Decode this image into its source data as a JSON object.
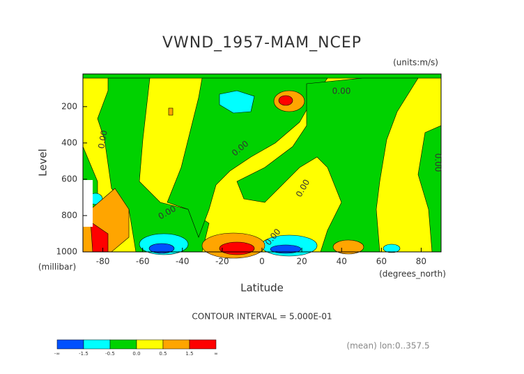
{
  "chart_data": {
    "type": "contour",
    "title": "VWND_1957-MAM_NCEP",
    "units": "(units:m/s)",
    "x_label": "Latitude",
    "x_units": "(degrees_north)",
    "y_label": "Level",
    "y_units": "(millibar)",
    "xlim": [
      -90,
      90
    ],
    "xticks": [
      -80,
      -60,
      -40,
      -20,
      0,
      20,
      40,
      60,
      80
    ],
    "ylim": [
      1000,
      20
    ],
    "yticks": [
      200,
      400,
      600,
      800,
      1000
    ],
    "contour_labels": [
      "0.00",
      "0.00",
      "0.00",
      "0.00",
      "0.00",
      "0.00",
      "0.00"
    ],
    "contour_interval": "CONTOUR INTERVAL = 5.000E-01",
    "colorbar": {
      "colors": [
        "#0050ff",
        "#00ffff",
        "#00d200",
        "#ffff00",
        "#ffa500",
        "#ff0000"
      ],
      "labels": [
        "-∞",
        "-1.5",
        "-0.5",
        "0.0",
        "0.5",
        "1.5",
        "∞"
      ]
    },
    "footnote": "(mean) lon:0..357.5"
  }
}
